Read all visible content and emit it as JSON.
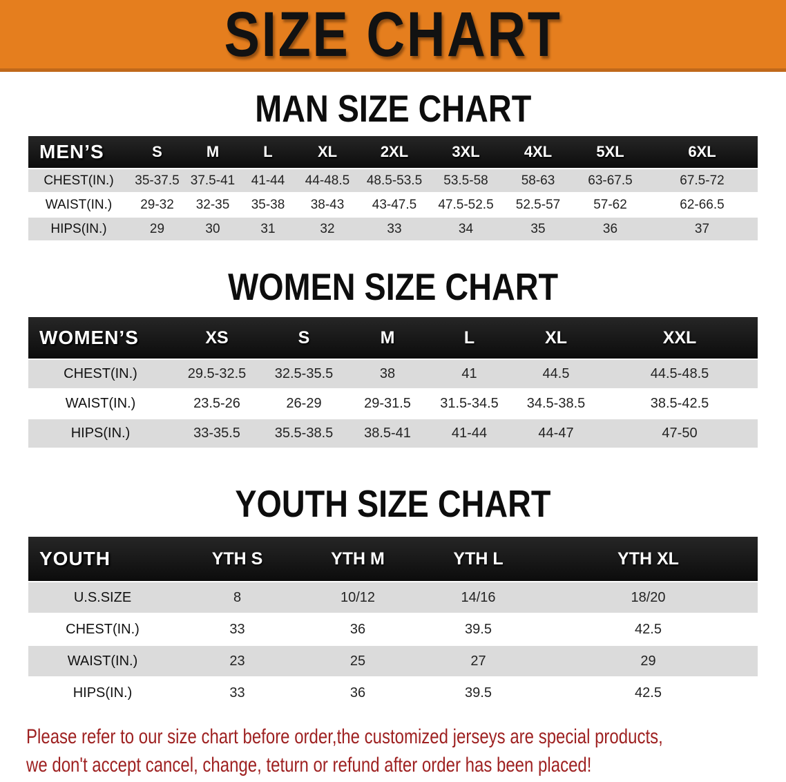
{
  "banner": {
    "title": "SIZE CHART",
    "bg_color": "#e57e1e",
    "border_color": "#c0681a"
  },
  "sections": [
    {
      "heading": "MAN SIZE CHART",
      "table": {
        "corner_label": "MEN’S",
        "columns": [
          "S",
          "M",
          "L",
          "XL",
          "2XL",
          "3XL",
          "4XL",
          "5XL",
          "6XL"
        ],
        "rows": [
          {
            "label": "CHEST(IN.)",
            "values": [
              "35-37.5",
              "37.5-41",
              "41-44",
              "44-48.5",
              "48.5-53.5",
              "53.5-58",
              "58-63",
              "63-67.5",
              "67.5-72"
            ]
          },
          {
            "label": "WAIST(IN.)",
            "values": [
              "29-32",
              "32-35",
              "35-38",
              "38-43",
              "43-47.5",
              "47.5-52.5",
              "52.5-57",
              "57-62",
              "62-66.5"
            ]
          },
          {
            "label": "HIPS(IN.)",
            "values": [
              "29",
              "30",
              "31",
              "32",
              "33",
              "34",
              "35",
              "36",
              "37"
            ]
          }
        ]
      }
    },
    {
      "heading": "WOMEN SIZE CHART",
      "table": {
        "corner_label": "WOMEN’S",
        "columns": [
          "XS",
          "S",
          "M",
          "L",
          "XL",
          "XXL"
        ],
        "rows": [
          {
            "label": "CHEST(IN.)",
            "values": [
              "29.5-32.5",
              "32.5-35.5",
              "38",
              "41",
              "44.5",
              "44.5-48.5"
            ]
          },
          {
            "label": "WAIST(IN.)",
            "values": [
              "23.5-26",
              "26-29",
              "29-31.5",
              "31.5-34.5",
              "34.5-38.5",
              "38.5-42.5"
            ]
          },
          {
            "label": "HIPS(IN.)",
            "values": [
              "33-35.5",
              "35.5-38.5",
              "38.5-41",
              "41-44",
              "44-47",
              "47-50"
            ]
          }
        ]
      }
    },
    {
      "heading": "YOUTH SIZE CHART",
      "table": {
        "corner_label": "YOUTH",
        "columns": [
          "YTH S",
          "YTH M",
          "YTH L",
          "YTH XL"
        ],
        "rows": [
          {
            "label": "U.S.SIZE",
            "values": [
              "8",
              "10/12",
              "14/16",
              "18/20"
            ]
          },
          {
            "label": "CHEST(IN.)",
            "values": [
              "33",
              "36",
              "39.5",
              "42.5"
            ]
          },
          {
            "label": "WAIST(IN.)",
            "values": [
              "23",
              "25",
              "27",
              "29"
            ]
          },
          {
            "label": "HIPS(IN.)",
            "values": [
              "33",
              "36",
              "39.5",
              "42.5"
            ]
          }
        ]
      }
    }
  ],
  "footer": {
    "color": "#9e2121",
    "lines": [
      "Please refer to our size chart before order,the customized jerseys are special products,",
      "we don't accept cancel, change, teturn or refund after order has been placed!"
    ]
  }
}
